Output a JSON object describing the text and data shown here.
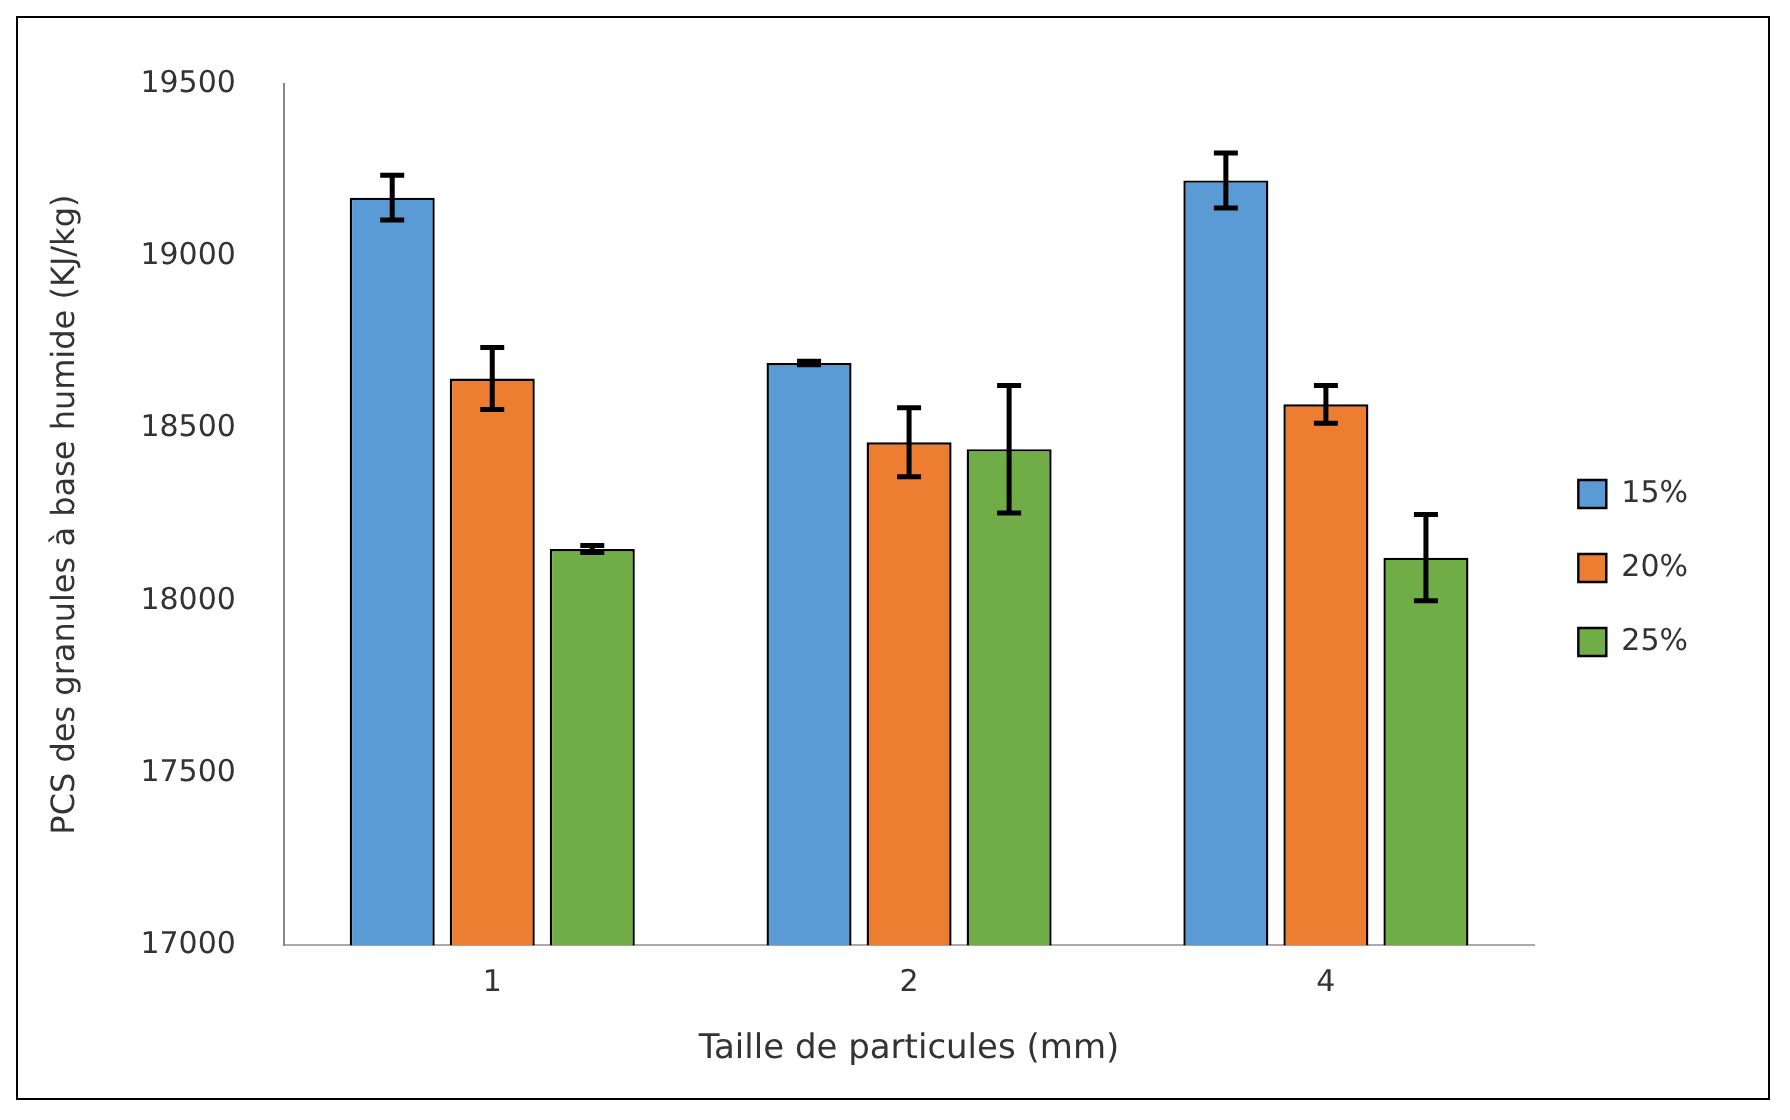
{
  "chart_data": {
    "type": "bar",
    "xlabel": "Taille de particules (mm)",
    "ylabel": "PCS des granules à base humide (KJ/kg)",
    "categories": [
      "1",
      "2",
      "4"
    ],
    "series": [
      {
        "name": "15%",
        "color": "#5b9bd5",
        "values": [
          19170,
          18690,
          19220
        ],
        "errors": [
          65,
          5,
          80
        ]
      },
      {
        "name": "20%",
        "color": "#ed7d31",
        "values": [
          18645,
          18460,
          18570
        ],
        "errors": [
          90,
          100,
          55
        ]
      },
      {
        "name": "25%",
        "color": "#70ad47",
        "values": [
          18150,
          18440,
          18125
        ],
        "errors": [
          10,
          185,
          125
        ]
      }
    ],
    "ylim": [
      17000,
      19500
    ],
    "yticks": [
      17000,
      17500,
      18000,
      18500,
      19000,
      19500
    ],
    "grid": false,
    "legend": "right"
  }
}
